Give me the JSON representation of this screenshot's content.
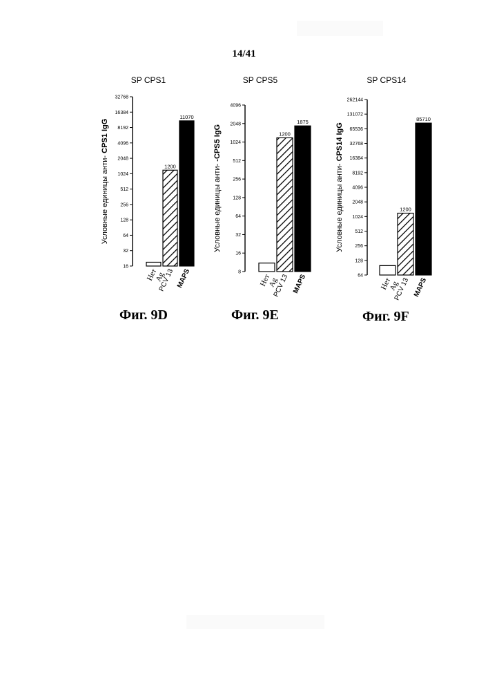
{
  "page": {
    "number": "14/41"
  },
  "ylabel_part1": "Условные единицы анти-",
  "figures": [
    {
      "id": "d",
      "caption": "Фиг. 9D"
    },
    {
      "id": "e",
      "caption": "Фиг. 9E"
    },
    {
      "id": "f",
      "caption": "Фиг. 9F"
    }
  ],
  "chart_data": [
    {
      "type": "bar",
      "title": "SP CPS1",
      "ylabel": "CPS1 IgG",
      "yscale": "log2",
      "ylim": [
        16,
        32768
      ],
      "yticks": [
        "16",
        "32",
        "64",
        "128",
        "256",
        "512",
        "1024",
        "2048",
        "4096",
        "8192",
        "16384",
        "32768"
      ],
      "categories": [
        "Нет Ag",
        "PCV 13",
        "MAPS"
      ],
      "category_label_lines": [
        [
          "Нет",
          "Ag"
        ],
        [
          "PCV 13"
        ],
        [
          "MAPS"
        ]
      ],
      "category_label_bold": [
        false,
        false,
        true
      ],
      "values": [
        19,
        1200,
        11070
      ],
      "data_labels": [
        "",
        "1200",
        "11070"
      ],
      "bar_styles": [
        "open",
        "hatched",
        "solid"
      ],
      "grid": false,
      "legend": "none"
    },
    {
      "type": "bar",
      "title": "SP CPS5",
      "ylabel": "-CPS5 IgG",
      "yscale": "log2",
      "ylim": [
        8,
        4096
      ],
      "yticks": [
        "8",
        "16",
        "32",
        "64",
        "128",
        "256",
        "512",
        "1024",
        "2048",
        "4096"
      ],
      "categories": [
        "Нет Ag",
        "PCV 13",
        "MAPS"
      ],
      "category_label_lines": [
        [
          "Нет",
          "Ag"
        ],
        [
          "PCV 13"
        ],
        [
          "MAPS"
        ]
      ],
      "category_label_bold": [
        false,
        false,
        true
      ],
      "values": [
        11,
        1200,
        1875
      ],
      "data_labels": [
        "",
        "1200",
        "1875"
      ],
      "bar_styles": [
        "open",
        "hatched",
        "solid"
      ],
      "grid": false,
      "legend": "none"
    },
    {
      "type": "bar",
      "title": "SP CPS14",
      "ylabel": "CPS14 IgG",
      "yscale": "log2",
      "ylim": [
        64,
        262144
      ],
      "yticks": [
        "64",
        "128",
        "256",
        "512",
        "1024",
        "2048",
        "4096",
        "8192",
        "16384",
        "32768",
        "65536",
        "131072",
        "262144"
      ],
      "categories": [
        "Нет Ag",
        "PCV 13",
        "MAPS"
      ],
      "category_label_lines": [
        [
          "Нет",
          "Ag"
        ],
        [
          "PCV 13"
        ],
        [
          "MAPS"
        ]
      ],
      "category_label_bold": [
        false,
        false,
        true
      ],
      "values": [
        100,
        1200,
        85710
      ],
      "data_labels": [
        "",
        "1200",
        "85710"
      ],
      "bar_styles": [
        "open",
        "hatched",
        "solid"
      ],
      "grid": false,
      "legend": "none"
    }
  ]
}
